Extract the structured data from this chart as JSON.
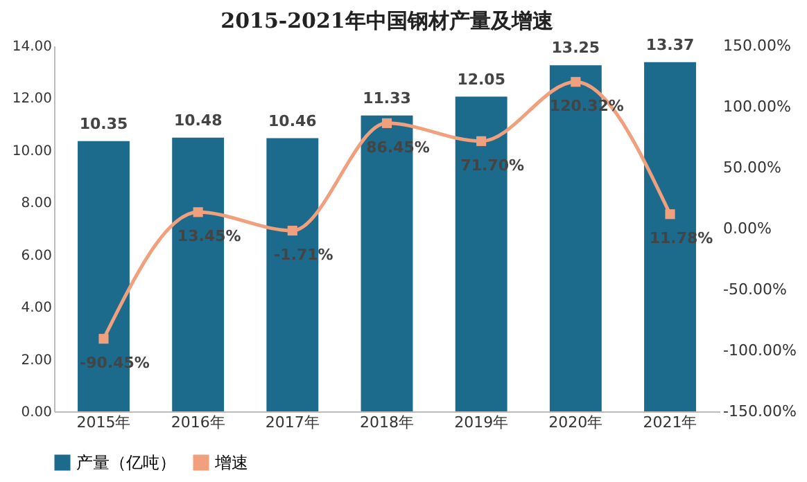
{
  "chart_data": {
    "type": "bar",
    "title": "2015-2021年中国钢材产量及增速",
    "categories": [
      "2015年",
      "2016年",
      "2017年",
      "2018年",
      "2019年",
      "2020年",
      "2021年"
    ],
    "series": [
      {
        "name": "产量（亿吨）",
        "color": "#1c6a8c",
        "values": [
          10.35,
          10.48,
          10.46,
          11.33,
          12.05,
          13.25,
          13.37
        ],
        "value_labels": [
          "10.35",
          "10.48",
          "10.46",
          "11.33",
          "12.05",
          "13.25",
          "13.37"
        ]
      },
      {
        "name": "增速",
        "type": "line",
        "axis": "y2",
        "color": "#f0a07c",
        "marker": "square",
        "values": [
          -90.45,
          13.45,
          -1.71,
          86.45,
          71.7,
          120.32,
          11.78
        ],
        "value_labels": [
          "-90.45%",
          "13.45%",
          "-1.71%",
          "86.45%",
          "71.70%",
          "120.32%",
          "11.78%"
        ]
      }
    ],
    "ylim": [
      0,
      14
    ],
    "yticks": [
      {
        "value": 0,
        "label": "0.00"
      },
      {
        "value": 2,
        "label": "2.00"
      },
      {
        "value": 4,
        "label": "4.00"
      },
      {
        "value": 6,
        "label": "6.00"
      },
      {
        "value": 8,
        "label": "8.00"
      },
      {
        "value": 10,
        "label": "10.00"
      },
      {
        "value": 12,
        "label": "12.00"
      },
      {
        "value": 14,
        "label": "14.00"
      }
    ],
    "y2lim": [
      -150,
      150
    ],
    "y2ticks": [
      {
        "value": -150,
        "label": "-150.00%"
      },
      {
        "value": -100,
        "label": "-100.00%"
      },
      {
        "value": -50,
        "label": "-50.00%"
      },
      {
        "value": 0,
        "label": "0.00%"
      },
      {
        "value": 50,
        "label": "50.00%"
      },
      {
        "value": 100,
        "label": "100.00%"
      },
      {
        "value": 150,
        "label": "150.00%"
      }
    ],
    "legend": "bottom",
    "grid": false
  }
}
